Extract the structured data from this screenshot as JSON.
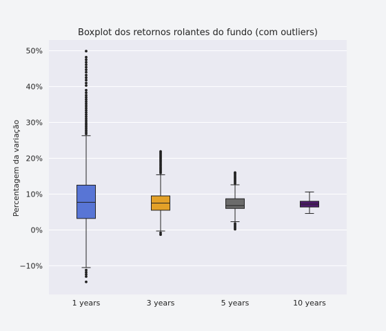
{
  "chart_data": {
    "type": "boxplot",
    "title": "Boxplot dos retornos rolantes do fundo (com outliers)",
    "xlabel": "",
    "ylabel": "Percentagem da variação",
    "ylim": [
      -18,
      53
    ],
    "yticks": [
      -10,
      0,
      10,
      20,
      30,
      40,
      50
    ],
    "ytick_labels": [
      "−10%",
      "0%",
      "10%",
      "20%",
      "30%",
      "40%",
      "50%"
    ],
    "grid": true,
    "categories": [
      "1 years",
      "3 years",
      "5 years",
      "10 years"
    ],
    "colors": {
      "background": "#eaeaf2",
      "page": "#f3f4f6",
      "grid": "#ffffff",
      "line": "#222222",
      "outlier": "#222222"
    },
    "boxes": [
      {
        "label": "1 years",
        "color": "#5875d5",
        "whisker_low": -10.5,
        "q1": 3.2,
        "median": 7.7,
        "q3": 12.5,
        "whisker_high": 26.3,
        "outliers_high": [
          26.8,
          27.3,
          27.8,
          28.3,
          28.8,
          29.3,
          29.8,
          30.4,
          31.0,
          31.6,
          32.2,
          32.8,
          33.4,
          34.0,
          34.6,
          35.2,
          35.8,
          36.4,
          37.0,
          37.6,
          38.3,
          39.0,
          40.3,
          41.0,
          41.8,
          42.5,
          43.2,
          44.0,
          44.7,
          45.4,
          46.1,
          46.8,
          47.5,
          48.2,
          49.9
        ],
        "outliers_low": [
          -11.2,
          -11.8,
          -12.4,
          -13.0,
          -14.5
        ]
      },
      {
        "label": "3 years",
        "color": "#e3a128",
        "whisker_low": -0.3,
        "q1": 5.5,
        "median": 7.5,
        "q3": 9.5,
        "whisker_high": 15.4,
        "outliers_high": [
          15.9,
          16.3,
          16.7,
          17.1,
          17.5,
          17.9,
          18.3,
          18.7,
          19.1,
          19.5,
          19.9,
          20.3,
          20.7,
          21.1,
          21.5,
          21.9
        ],
        "outliers_low": [
          -0.8,
          -1.3
        ]
      },
      {
        "label": "5 years",
        "color": "#6b6b6b",
        "whisker_low": 2.3,
        "q1": 6.0,
        "median": 6.8,
        "q3": 8.7,
        "whisker_high": 12.6,
        "outliers_high": [
          13.0,
          13.4,
          13.8,
          14.2,
          14.6,
          15.0,
          15.4,
          15.8,
          16.0
        ],
        "outliers_low": [
          1.8,
          1.4,
          1.0,
          0.6,
          0.2
        ]
      },
      {
        "label": "10 years",
        "color": "#4d1a6b",
        "whisker_low": 4.6,
        "q1": 6.4,
        "median": 7.2,
        "q3": 8.0,
        "whisker_high": 10.6,
        "outliers_high": [],
        "outliers_low": []
      }
    ]
  }
}
